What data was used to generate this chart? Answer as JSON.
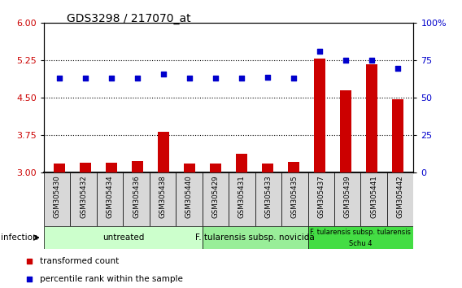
{
  "title": "GDS3298 / 217070_at",
  "samples": [
    "GSM305430",
    "GSM305432",
    "GSM305434",
    "GSM305436",
    "GSM305438",
    "GSM305440",
    "GSM305429",
    "GSM305431",
    "GSM305433",
    "GSM305435",
    "GSM305437",
    "GSM305439",
    "GSM305441",
    "GSM305442"
  ],
  "transformed_count": [
    3.18,
    3.2,
    3.2,
    3.23,
    3.82,
    3.18,
    3.18,
    3.38,
    3.18,
    3.22,
    5.28,
    4.65,
    5.18,
    4.47
  ],
  "percentile_rank": [
    63,
    63,
    63,
    63,
    66,
    63,
    63,
    63,
    64,
    63,
    81,
    75,
    75,
    70
  ],
  "groups": [
    {
      "label": "untreated",
      "start": 0,
      "end": 6,
      "color": "#ccffcc"
    },
    {
      "label": "F. tularensis subsp. novicida",
      "start": 6,
      "end": 10,
      "color": "#99ee99"
    },
    {
      "label": "F. tularensis subsp. tularensis\nSchu 4",
      "start": 10,
      "end": 14,
      "color": "#44dd44"
    }
  ],
  "bar_color": "#cc0000",
  "dot_color": "#0000cc",
  "ylim_left": [
    3.0,
    6.0
  ],
  "ylim_right": [
    0,
    100
  ],
  "yticks_left": [
    3.0,
    3.75,
    4.5,
    5.25,
    6.0
  ],
  "yticks_right": [
    0,
    25,
    50,
    75,
    100
  ],
  "dotted_lines": [
    3.75,
    4.5,
    5.25
  ],
  "infection_label": "infection",
  "legend1": "transformed count",
  "legend2": "percentile rank within the sample",
  "sample_box_color": "#d8d8d8",
  "bar_width": 0.45
}
